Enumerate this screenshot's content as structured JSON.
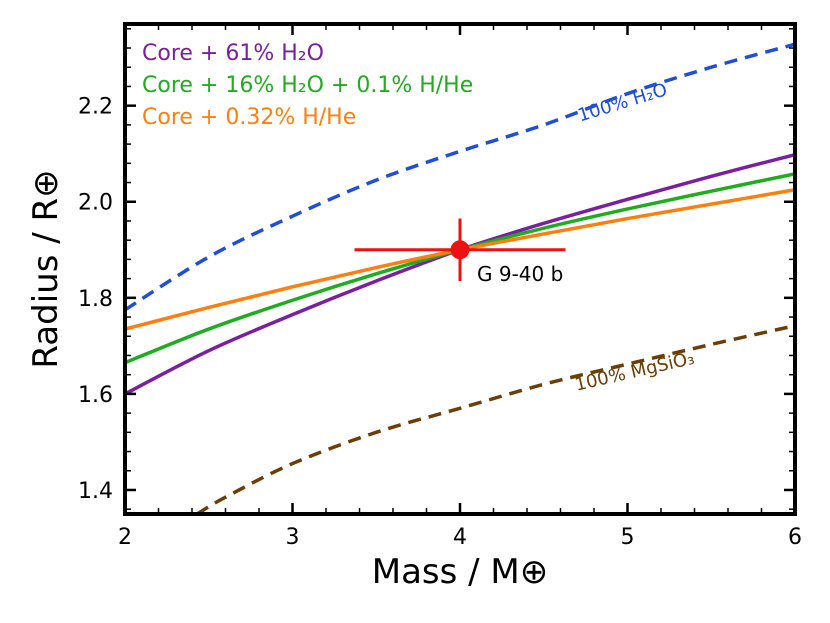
{
  "chart_data": {
    "type": "line",
    "xlabel": "Mass / M⊕",
    "ylabel": "Radius / R⊕",
    "xlim": [
      2,
      6
    ],
    "ylim": [
      1.35,
      2.37
    ],
    "xticks": [
      2,
      3,
      4,
      5,
      6
    ],
    "yticks": [
      1.4,
      1.6,
      1.8,
      2.0,
      2.2
    ],
    "xtick_labels": [
      "2",
      "3",
      "4",
      "5",
      "6"
    ],
    "ytick_labels": [
      "1.4",
      "1.6",
      "1.8",
      "2.0",
      "2.2"
    ],
    "grid": false,
    "legend_position": "top-left",
    "series": [
      {
        "name": "Core + 61% H2O",
        "legend_text": "Core + 61% H₂O",
        "color": "#7b1fa2",
        "style": "solid",
        "x": [
          2.0,
          2.5,
          3.0,
          3.5,
          4.0,
          4.5,
          5.0,
          5.5,
          6.0
        ],
        "y": [
          1.6,
          1.69,
          1.765,
          1.835,
          1.9,
          1.955,
          2.005,
          2.053,
          2.098
        ]
      },
      {
        "name": "Core + 16% H2O + 0.1% H/He",
        "legend_text": "Core + 16% H₂O + 0.1% H/He",
        "color": "#1fad1f",
        "style": "solid",
        "x": [
          2.0,
          2.5,
          3.0,
          3.5,
          4.0,
          4.5,
          5.0,
          5.5,
          6.0
        ],
        "y": [
          1.665,
          1.735,
          1.795,
          1.85,
          1.9,
          1.945,
          1.985,
          2.022,
          2.058
        ]
      },
      {
        "name": "Core + 0.32% H/He",
        "legend_text": "Core + 0.32% H/He",
        "color": "#ff7f0e",
        "style": "solid",
        "x": [
          2.0,
          2.5,
          3.0,
          3.5,
          4.0,
          4.5,
          5.0,
          5.5,
          6.0
        ],
        "y": [
          1.735,
          1.78,
          1.823,
          1.863,
          1.9,
          1.933,
          1.965,
          1.995,
          2.025
        ]
      },
      {
        "name": "100% H2O",
        "color": "#1f4fd8",
        "style": "dashed",
        "x": [
          2.0,
          2.5,
          3.0,
          3.5,
          4.0,
          4.5,
          5.0,
          5.5,
          6.0
        ],
        "y": [
          1.775,
          1.885,
          1.97,
          2.045,
          2.105,
          2.16,
          2.225,
          2.28,
          2.328
        ]
      },
      {
        "name": "100% MgSiO3",
        "color": "#6b3e07",
        "style": "dashed",
        "x": [
          2.43,
          2.6,
          3.0,
          3.5,
          4.0,
          4.5,
          5.0,
          5.5,
          6.0
        ],
        "y": [
          1.35,
          1.385,
          1.455,
          1.52,
          1.57,
          1.62,
          1.662,
          1.703,
          1.742
        ]
      }
    ],
    "annotations": [
      {
        "text": "100% H₂O",
        "x": 4.98,
        "y": 2.195,
        "rotation": -17,
        "color": "#1f4fd8"
      },
      {
        "text": "100% MgSiO₃",
        "x": 5.05,
        "y": 1.635,
        "rotation": -13,
        "color": "#6b3e07"
      }
    ],
    "point": {
      "label": "G 9-40 b",
      "x": 4.0,
      "y": 1.9,
      "xerr": 0.63,
      "yerr": 0.065,
      "color": "#ee1111"
    }
  }
}
